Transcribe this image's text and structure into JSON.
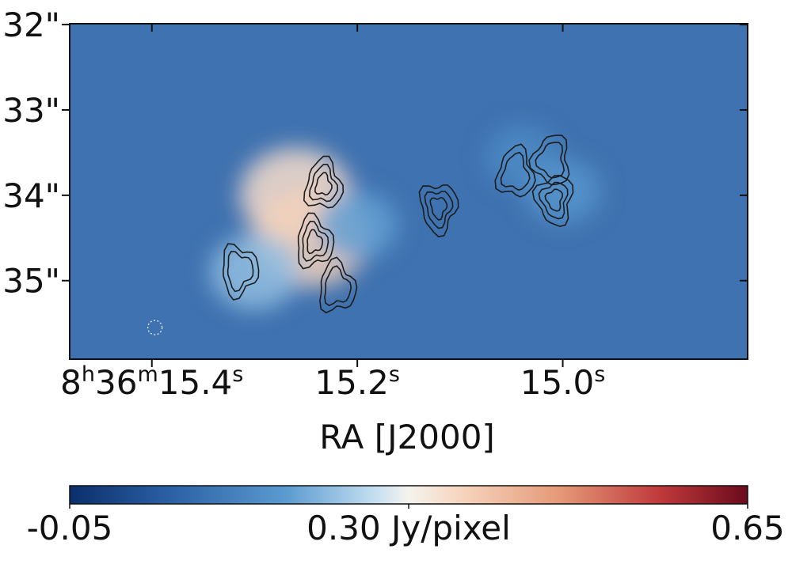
{
  "chart_data": {
    "type": "heatmap",
    "title": "",
    "xlabel": "RA [J2000]",
    "ylabel": "",
    "x_ticks": [
      {
        "h": "8",
        "hu": "h",
        "m": "36",
        "mu": "m",
        "s": "15.4",
        "su": "s",
        "value_s": 15.4
      },
      {
        "s": "15.2",
        "su": "s",
        "value_s": 15.2
      },
      {
        "s": "15.0",
        "su": "s",
        "value_s": 15.0
      }
    ],
    "y_ticks": [
      {
        "label": "32\"",
        "value_arcsec": 32
      },
      {
        "label": "33\"",
        "value_arcsec": 33
      },
      {
        "label": "34\"",
        "value_arcsec": 34
      },
      {
        "label": "35\"",
        "value_arcsec": 35
      }
    ],
    "xlim_s": [
      15.48,
      14.82
    ],
    "ylim_arcsec": [
      31.99,
      35.92
    ],
    "colorbar": {
      "colormap": "RdBu_r",
      "min_label": "-0.05",
      "mid_label": "0.30 Jy/pixel",
      "max_label": "0.65",
      "min": -0.05,
      "mid": 0.3,
      "max": 0.65,
      "orientation": "horizontal",
      "placement": "bottom"
    },
    "colors": {
      "background": "#3f72b0",
      "low": "#0b2f6b",
      "mid": "#f5f3ee",
      "high": "#6b0a1c",
      "contour": "#1c1c1c",
      "beam": "#e8eef6"
    },
    "emission_peaks": [
      {
        "ra_s": 15.26,
        "dec_arcsec": 34.0,
        "level": 0.34
      },
      {
        "ra_s": 15.245,
        "dec_arcsec": 34.5,
        "level": 0.36
      },
      {
        "ra_s": 15.3,
        "dec_arcsec": 34.9,
        "level": 0.22
      },
      {
        "ra_s": 15.2,
        "dec_arcsec": 34.35,
        "level": 0.18
      },
      {
        "ra_s": 15.04,
        "dec_arcsec": 33.55,
        "level": 0.14
      },
      {
        "ra_s": 15.0,
        "dec_arcsec": 33.95,
        "level": 0.16
      }
    ],
    "contour_groups": [
      {
        "ra_s": 15.233,
        "dec_arcsec": 33.88,
        "rings": 3
      },
      {
        "ra_s": 15.242,
        "dec_arcsec": 34.55,
        "rings": 3
      },
      {
        "ra_s": 15.315,
        "dec_arcsec": 34.88,
        "rings": 2
      },
      {
        "ra_s": 15.121,
        "dec_arcsec": 34.14,
        "rings": 3
      },
      {
        "ra_s": 15.008,
        "dec_arcsec": 34.05,
        "rings": 3
      },
      {
        "ra_s": 15.011,
        "dec_arcsec": 33.59,
        "rings": 2
      },
      {
        "ra_s": 15.046,
        "dec_arcsec": 33.74,
        "rings": 2
      },
      {
        "ra_s": 15.22,
        "dec_arcsec": 35.08,
        "rings": 2
      }
    ],
    "beam": {
      "ra_s": 15.397,
      "dec_arcsec": 35.55,
      "style": "dotted circle"
    },
    "grid": false,
    "legend": "none"
  }
}
